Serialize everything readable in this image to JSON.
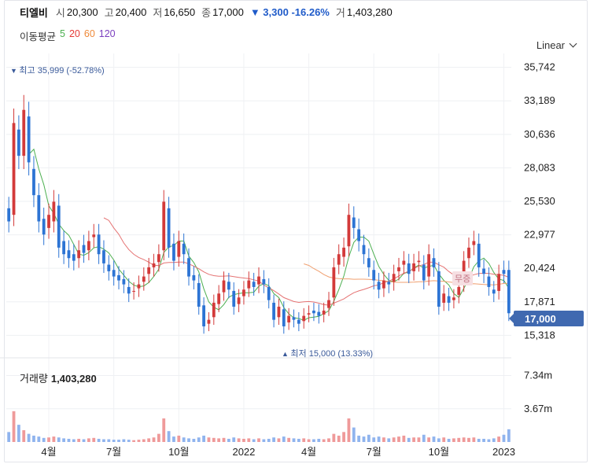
{
  "quote": {
    "name": "티엘비",
    "open_label": "시",
    "open": "20,300",
    "high_label": "고",
    "high": "20,400",
    "low_label": "저",
    "low": "16,650",
    "close_label": "종",
    "close": "17,000",
    "change": "▼ 3,300 -16.26%",
    "volume_label": "거",
    "volume": "1,403,280"
  },
  "ma": {
    "title": "이동평균",
    "periods": [
      "5",
      "20",
      "60",
      "120"
    ],
    "colors": [
      "#4caf50",
      "#e53935",
      "#ef8a3a",
      "#7b3fbf"
    ]
  },
  "scale_button": "Linear",
  "volume_header": {
    "label": "거래량",
    "value": "1,403,280"
  },
  "current_price": "17,000",
  "annotations": {
    "high": "최고  35,999 (-52.78%)",
    "low": "최저  15,000 (13.33%)",
    "badge": "무증"
  },
  "colors": {
    "up": "#d33a3a",
    "down": "#2d74d4",
    "up_vol": "#ef9a9a",
    "down_vol": "#90b4ee"
  },
  "chart_data": {
    "type": "candlestick",
    "price_ticks": [
      "35,742",
      "33,189",
      "30,636",
      "28,083",
      "25,530",
      "22,977",
      "20,424",
      "17,871",
      "15,318"
    ],
    "price_tick_values": [
      35742,
      33189,
      30636,
      28083,
      25530,
      22977,
      20424,
      17871,
      15318
    ],
    "price_range": [
      14500,
      36800
    ],
    "volume_ticks": [
      "7.34m",
      "3.67m"
    ],
    "volume_tick_values": [
      7340000,
      3670000
    ],
    "volume_range": [
      0,
      8600000
    ],
    "x_labels": [
      "4월",
      "7월",
      "10월",
      "2022",
      "4월",
      "7월",
      "10월",
      "2023"
    ],
    "x_label_weeks": [
      8,
      21,
      34,
      47,
      60,
      73,
      86,
      99
    ],
    "closes": [
      24000,
      31500,
      29000,
      32500,
      28500,
      26000,
      24000,
      23000,
      24500,
      25500,
      22000,
      21500,
      21200,
      21000,
      21800,
      21600,
      22500,
      23000,
      21500,
      20800,
      20200,
      19800,
      19500,
      19200,
      18500,
      18700,
      19200,
      19800,
      20500,
      20800,
      21500,
      25500,
      22000,
      21000,
      22500,
      21500,
      19800,
      19500,
      17500,
      16000,
      16500,
      17800,
      18500,
      19500,
      18800,
      17500,
      18200,
      18800,
      19500,
      19000,
      19800,
      19200,
      18000,
      16500,
      17500,
      16000,
      16800,
      16500,
      16200,
      16800,
      17000,
      17000,
      16800,
      17200,
      18000,
      20500,
      21500,
      22000,
      24500,
      23500,
      22500,
      21500,
      20500,
      19500,
      18800,
      19500,
      19200,
      20000,
      20500,
      21000,
      20000,
      20800,
      21000,
      19500,
      21500,
      20500,
      17500,
      18500,
      17800,
      18200,
      19000,
      21000,
      22000,
      22500,
      20500,
      20000,
      19000,
      18500,
      20000,
      20000,
      17000
    ],
    "opens": [
      25000,
      24500,
      31000,
      29000,
      32000,
      28000,
      26000,
      24200,
      23500,
      24000,
      25200,
      22500,
      21800,
      21500,
      21200,
      22200,
      21800,
      22800,
      23000,
      21800,
      20700,
      20300,
      19900,
      19600,
      19000,
      18700,
      18900,
      19400,
      20000,
      20500,
      20900,
      21800,
      25000,
      22300,
      21300,
      22300,
      21200,
      19900,
      19300,
      17600,
      16200,
      16700,
      17700,
      18600,
      19400,
      18700,
      17700,
      18300,
      18900,
      19400,
      19200,
      19600,
      19000,
      17800,
      16700,
      17300,
      16300,
      16700,
      16500,
      16400,
      16900,
      17200,
      17100,
      16900,
      17400,
      18200,
      20700,
      21300,
      22100,
      24300,
      23400,
      22200,
      21200,
      20300,
      19400,
      18900,
      19400,
      19400,
      20200,
      20700,
      20800,
      20200,
      20900,
      20700,
      19800,
      21200,
      20200,
      17800,
      18300,
      18000,
      18400,
      19300,
      21200,
      22200,
      22300,
      20400,
      19800,
      18800,
      18700,
      20300,
      20300
    ],
    "volumes": [
      1100000,
      3400000,
      1900000,
      1300000,
      900000,
      700000,
      600000,
      450000,
      500000,
      600000,
      500000,
      400000,
      350000,
      300000,
      350000,
      300000,
      400000,
      450000,
      350000,
      300000,
      300000,
      250000,
      250000,
      300000,
      250000,
      200000,
      250000,
      300000,
      400000,
      500000,
      900000,
      2600000,
      1200000,
      600000,
      700000,
      500000,
      400000,
      350000,
      500000,
      700000,
      500000,
      450000,
      400000,
      450000,
      350000,
      500000,
      400000,
      350000,
      400000,
      300000,
      400000,
      300000,
      350000,
      500000,
      400000,
      600000,
      450000,
      400000,
      350000,
      400000,
      300000,
      300000,
      350000,
      300000,
      400000,
      900000,
      700000,
      1100000,
      2600000,
      1600000,
      700000,
      600000,
      800000,
      500000,
      600000,
      500000,
      400000,
      500000,
      600000,
      700000,
      450000,
      500000,
      500000,
      800000,
      500000,
      600000,
      400000,
      500000,
      350000,
      400000,
      450000,
      500000,
      450000,
      500000,
      350000,
      350000,
      300000,
      400000,
      600000,
      800000,
      1403280
    ]
  }
}
